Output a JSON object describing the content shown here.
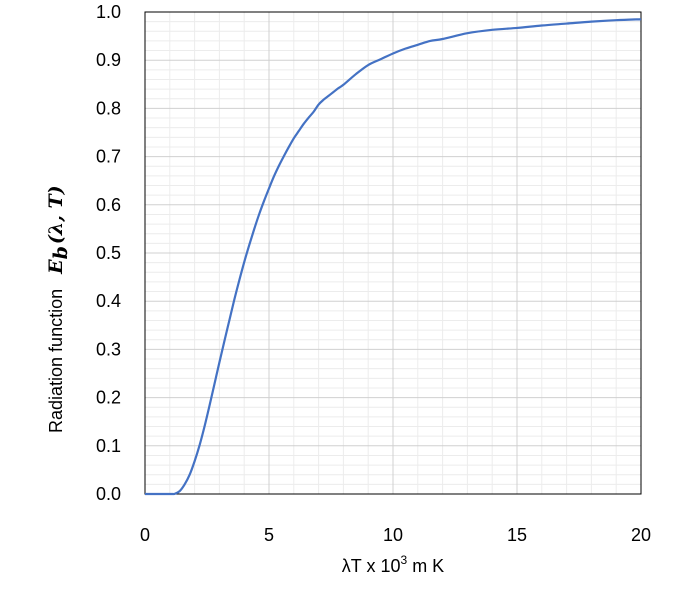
{
  "chart_data": {
    "type": "line",
    "title": "",
    "xlabel": "λT x 10³ m K",
    "xlabel_parts": {
      "pre": "λT x 10",
      "sup": "3",
      "post": " m K"
    },
    "ylabel": "Radiation function  Eb(λ, T)",
    "ylabel_parts": {
      "text": "Radiation function",
      "sym": "E",
      "sub": "b",
      "args": "(λ, T)"
    },
    "xlim": [
      0,
      20
    ],
    "ylim": [
      0,
      1.0
    ],
    "x_ticks": [
      0,
      5,
      10,
      15,
      20
    ],
    "x_tick_labels": [
      "0",
      "5",
      "10",
      "15",
      "20"
    ],
    "y_ticks": [
      0,
      0.1,
      0.2,
      0.3,
      0.4,
      0.5,
      0.6,
      0.7,
      0.8,
      0.9,
      1.0
    ],
    "y_tick_labels": [
      "0.0",
      "0.1",
      "0.2",
      "0.3",
      "0.4",
      "0.5",
      "0.6",
      "0.7",
      "0.8",
      "0.9",
      "1.0"
    ],
    "grid": true,
    "minor_grid": true,
    "series": [
      {
        "color": "#4472C4",
        "x": [
          0,
          1.0,
          1.2,
          1.4,
          1.6,
          1.8,
          2.0,
          2.2,
          2.4,
          2.6,
          2.8,
          3.0,
          3.2,
          3.4,
          3.6,
          3.8,
          4.0,
          4.2,
          4.4,
          4.6,
          4.8,
          5.0,
          5.2,
          5.4,
          5.6,
          5.8,
          6.0,
          6.2,
          6.4,
          6.6,
          6.8,
          7.0,
          7.2,
          7.4,
          7.6,
          7.8,
          8.0,
          8.5,
          9.0,
          9.5,
          10.0,
          10.5,
          11.0,
          11.5,
          12.0,
          13.0,
          14.0,
          15.0,
          16.0,
          17.0,
          18.0,
          19.0,
          20.0
        ],
        "y": [
          0.0,
          0.0,
          0.0005,
          0.006,
          0.02,
          0.04,
          0.068,
          0.101,
          0.14,
          0.183,
          0.228,
          0.273,
          0.317,
          0.36,
          0.403,
          0.443,
          0.481,
          0.516,
          0.549,
          0.58,
          0.608,
          0.634,
          0.659,
          0.681,
          0.701,
          0.72,
          0.738,
          0.753,
          0.768,
          0.781,
          0.793,
          0.808,
          0.818,
          0.826,
          0.834,
          0.842,
          0.849,
          0.871,
          0.89,
          0.902,
          0.914,
          0.924,
          0.932,
          0.94,
          0.944,
          0.956,
          0.963,
          0.967,
          0.972,
          0.976,
          0.98,
          0.983,
          0.985
        ]
      }
    ]
  }
}
